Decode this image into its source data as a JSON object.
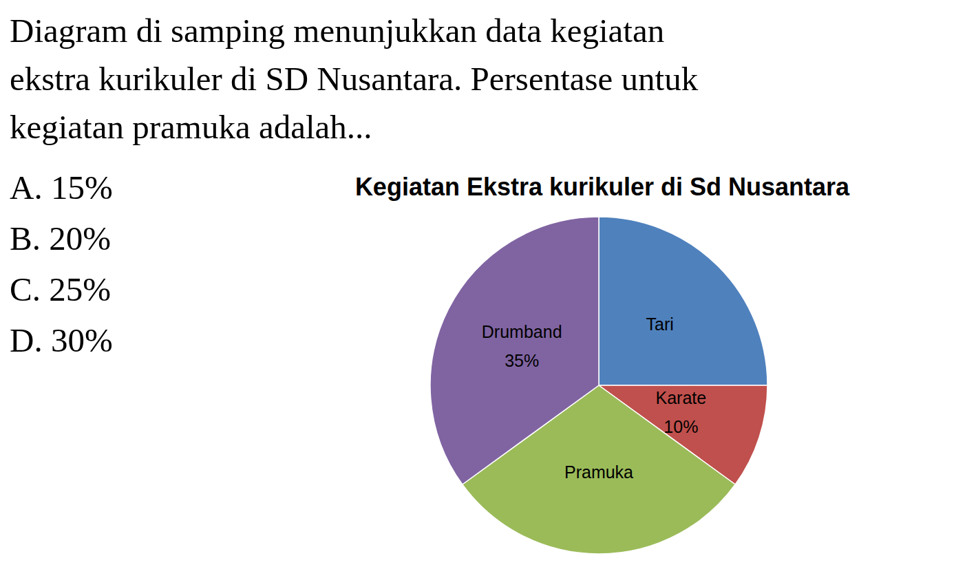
{
  "question": [
    "Diagram di samping menunjukkan data kegiatan",
    "ekstra kurikuler di SD Nusantara. Persentase untuk",
    "kegiatan pramuka adalah..."
  ],
  "options": [
    "A. 15%",
    "B. 20%",
    "C. 25%",
    "D. 30%"
  ],
  "chart_data": {
    "type": "pie",
    "title": "Kegiatan Ekstra kurikuler di Sd Nusantara",
    "categories": [
      "Tari",
      "Karate",
      "Pramuka",
      "Drumband"
    ],
    "values": [
      25,
      10,
      30,
      35
    ],
    "value_labels": [
      null,
      "10%",
      null,
      "35%"
    ],
    "colors": [
      "#4f81bd",
      "#c0504d",
      "#9bbb59",
      "#8064a2"
    ],
    "data_labels": true
  }
}
